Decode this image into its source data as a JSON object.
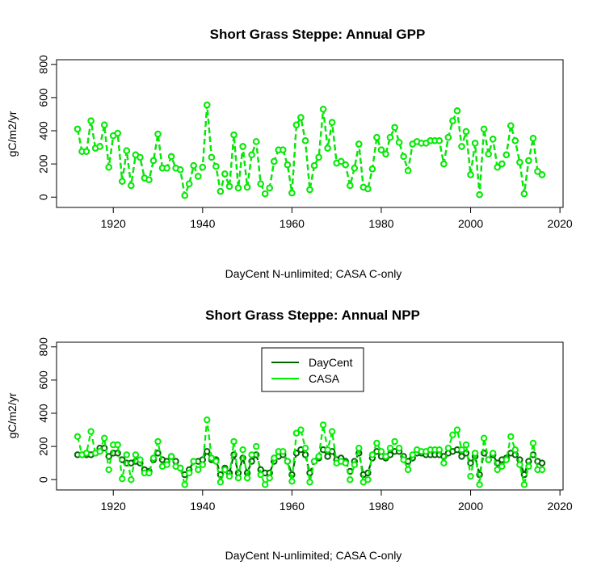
{
  "chart_data": [
    {
      "type": "line",
      "title": "Short Grass Steppe: Annual GPP",
      "xlabel": "DayCent N-unlimited; CASA C-only",
      "ylabel": "gC/m2/yr",
      "xlim": [
        1910,
        2020
      ],
      "ylim": [
        0,
        800
      ],
      "x_ticks": [
        1920,
        1940,
        1960,
        1980,
        2000,
        2020
      ],
      "y_ticks": [
        0,
        200,
        400,
        600,
        800
      ],
      "legend": null,
      "x": [
        1912,
        1913,
        1914,
        1915,
        1916,
        1917,
        1918,
        1919,
        1920,
        1921,
        1922,
        1923,
        1924,
        1925,
        1926,
        1927,
        1928,
        1929,
        1930,
        1931,
        1932,
        1933,
        1934,
        1935,
        1936,
        1937,
        1938,
        1939,
        1940,
        1941,
        1942,
        1943,
        1944,
        1945,
        1946,
        1947,
        1948,
        1949,
        1950,
        1951,
        1952,
        1953,
        1954,
        1955,
        1956,
        1957,
        1958,
        1959,
        1960,
        1961,
        1962,
        1963,
        1964,
        1965,
        1966,
        1967,
        1968,
        1969,
        1970,
        1971,
        1972,
        1973,
        1974,
        1975,
        1976,
        1977,
        1978,
        1979,
        1980,
        1981,
        1982,
        1983,
        1984,
        1985,
        1986,
        1987,
        1988,
        1989,
        1990,
        1991,
        1992,
        1993,
        1994,
        1995,
        1996,
        1997,
        1998,
        1999,
        2000,
        2001,
        2002,
        2003,
        2004,
        2005,
        2006,
        2007,
        2008,
        2009,
        2010,
        2011,
        2012,
        2013,
        2014,
        2015,
        2016
      ],
      "series": [
        {
          "name": "DayCent",
          "color": "#006400",
          "values": [
            410,
            275,
            275,
            460,
            295,
            305,
            435,
            180,
            370,
            385,
            95,
            280,
            70,
            255,
            240,
            115,
            105,
            220,
            380,
            175,
            175,
            245,
            175,
            165,
            10,
            80,
            190,
            125,
            180,
            555,
            240,
            185,
            35,
            140,
            65,
            375,
            55,
            305,
            60,
            255,
            335,
            80,
            20,
            55,
            215,
            285,
            285,
            195,
            25,
            435,
            480,
            340,
            45,
            190,
            240,
            530,
            295,
            450,
            205,
            215,
            195,
            70,
            175,
            320,
            60,
            50,
            170,
            360,
            285,
            260,
            360,
            420,
            330,
            245,
            160,
            320,
            335,
            325,
            325,
            340,
            340,
            340,
            200,
            360,
            460,
            520,
            305,
            395,
            135,
            325,
            15,
            410,
            260,
            350,
            180,
            200,
            255,
            430,
            340,
            210,
            20,
            220,
            355,
            155,
            135
          ]
        },
        {
          "name": "CASA",
          "color": "#00ee00",
          "values": [
            410,
            275,
            275,
            460,
            295,
            305,
            435,
            180,
            370,
            385,
            95,
            280,
            70,
            255,
            240,
            115,
            105,
            220,
            380,
            175,
            175,
            245,
            175,
            165,
            10,
            80,
            190,
            125,
            180,
            555,
            240,
            185,
            35,
            140,
            65,
            375,
            55,
            305,
            60,
            255,
            335,
            80,
            20,
            55,
            215,
            285,
            285,
            195,
            25,
            435,
            480,
            340,
            45,
            190,
            240,
            530,
            295,
            450,
            205,
            215,
            195,
            70,
            175,
            320,
            60,
            50,
            170,
            360,
            285,
            260,
            360,
            420,
            330,
            245,
            160,
            320,
            335,
            325,
            325,
            340,
            340,
            340,
            200,
            360,
            460,
            520,
            305,
            395,
            135,
            325,
            15,
            410,
            260,
            350,
            180,
            200,
            255,
            430,
            340,
            210,
            20,
            220,
            355,
            155,
            135
          ]
        }
      ]
    },
    {
      "type": "line",
      "title": "Short Grass Steppe: Annual NPP",
      "xlabel": "DayCent N-unlimited; CASA C-only",
      "ylabel": "gC/m2/yr",
      "xlim": [
        1910,
        2020
      ],
      "ylim": [
        0,
        800
      ],
      "x_ticks": [
        1920,
        1940,
        1960,
        1980,
        2000,
        2020
      ],
      "y_ticks": [
        0,
        200,
        400,
        600,
        800
      ],
      "legend": {
        "position": "top-center",
        "entries": [
          "DayCent",
          "CASA"
        ]
      },
      "x": [
        1912,
        1913,
        1914,
        1915,
        1916,
        1917,
        1918,
        1919,
        1920,
        1921,
        1922,
        1923,
        1924,
        1925,
        1926,
        1927,
        1928,
        1929,
        1930,
        1931,
        1932,
        1933,
        1934,
        1935,
        1936,
        1937,
        1938,
        1939,
        1940,
        1941,
        1942,
        1943,
        1944,
        1945,
        1946,
        1947,
        1948,
        1949,
        1950,
        1951,
        1952,
        1953,
        1954,
        1955,
        1956,
        1957,
        1958,
        1959,
        1960,
        1961,
        1962,
        1963,
        1964,
        1965,
        1966,
        1967,
        1968,
        1969,
        1970,
        1971,
        1972,
        1973,
        1974,
        1975,
        1976,
        1977,
        1978,
        1979,
        1980,
        1981,
        1982,
        1983,
        1984,
        1985,
        1986,
        1987,
        1988,
        1989,
        1990,
        1991,
        1992,
        1993,
        1994,
        1995,
        1996,
        1997,
        1998,
        1999,
        2000,
        2001,
        2002,
        2003,
        2004,
        2005,
        2006,
        2007,
        2008,
        2009,
        2010,
        2011,
        2012,
        2013,
        2014,
        2015,
        2016
      ],
      "series": [
        {
          "name": "DayCent",
          "color": "#006400",
          "values": [
            150,
            150,
            150,
            150,
            160,
            190,
            190,
            140,
            160,
            160,
            120,
            100,
            100,
            110,
            100,
            60,
            50,
            120,
            160,
            120,
            110,
            140,
            110,
            70,
            30,
            60,
            110,
            110,
            120,
            170,
            120,
            120,
            30,
            70,
            40,
            150,
            40,
            130,
            40,
            110,
            150,
            60,
            40,
            40,
            110,
            140,
            150,
            110,
            30,
            160,
            180,
            150,
            40,
            110,
            130,
            180,
            140,
            170,
            120,
            130,
            110,
            50,
            110,
            160,
            30,
            40,
            130,
            170,
            140,
            130,
            150,
            170,
            170,
            140,
            110,
            130,
            160,
            160,
            150,
            150,
            150,
            150,
            140,
            160,
            170,
            180,
            140,
            160,
            100,
            140,
            30,
            160,
            120,
            150,
            100,
            120,
            130,
            160,
            150,
            120,
            30,
            110,
            150,
            110,
            100
          ]
        },
        {
          "name": "CASA",
          "color": "#00ee00",
          "values": [
            260,
            150,
            160,
            290,
            160,
            170,
            250,
            60,
            210,
            210,
            5,
            150,
            0,
            150,
            120,
            40,
            40,
            130,
            230,
            80,
            90,
            140,
            80,
            70,
            -30,
            40,
            110,
            60,
            90,
            360,
            130,
            110,
            -15,
            60,
            20,
            230,
            10,
            180,
            10,
            150,
            200,
            30,
            -30,
            10,
            130,
            170,
            170,
            110,
            -10,
            280,
            300,
            190,
            -15,
            110,
            140,
            330,
            180,
            290,
            100,
            110,
            100,
            0,
            90,
            190,
            -15,
            0,
            150,
            220,
            170,
            140,
            190,
            230,
            190,
            120,
            60,
            150,
            180,
            170,
            170,
            180,
            180,
            180,
            100,
            190,
            270,
            300,
            180,
            210,
            20,
            160,
            -30,
            250,
            120,
            160,
            60,
            80,
            120,
            260,
            180,
            90,
            -30,
            80,
            220,
            60,
            60
          ]
        }
      ]
    }
  ]
}
